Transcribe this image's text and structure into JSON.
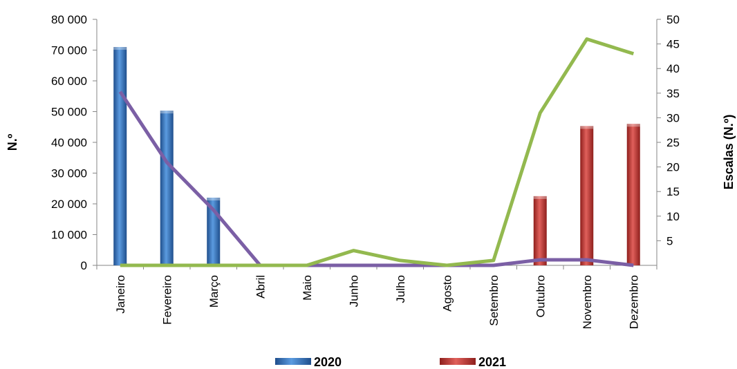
{
  "chart_data": {
    "type": "bar",
    "categories": [
      "Janeiro",
      "Fevereiro",
      "Março",
      "Abril",
      "Maio",
      "Junho",
      "Julho",
      "Agosto",
      "Setembro",
      "Outubro",
      "Novembro",
      "Dezembro"
    ],
    "bar_series": [
      {
        "name": "2020",
        "color": "#3a7fd0",
        "values": [
          71000,
          50300,
          22000,
          null,
          null,
          null,
          null,
          null,
          null,
          null,
          null,
          null
        ]
      },
      {
        "name": "2021",
        "color": "#cc3a36",
        "values": [
          null,
          null,
          null,
          null,
          null,
          null,
          null,
          null,
          null,
          22500,
          45300,
          46000
        ]
      }
    ],
    "line_series": [
      {
        "color": "#7b5fa5",
        "axis": "left",
        "values": [
          56500,
          33500,
          18000,
          0,
          0,
          0,
          0,
          0,
          0,
          1800,
          1800,
          0
        ]
      },
      {
        "color": "#93b94f",
        "axis": "right",
        "values": [
          0,
          0,
          0,
          0,
          0,
          3,
          1,
          0,
          1,
          31,
          46,
          43
        ]
      }
    ],
    "ylabel": "N.º",
    "y2label": "Escalas (N.º)",
    "ylim": [
      0,
      80000
    ],
    "y2lim": [
      0,
      50
    ],
    "yticks": [
      0,
      10000,
      20000,
      30000,
      40000,
      50000,
      60000,
      70000,
      80000
    ],
    "ytick_labels": [
      "0",
      "10 000",
      "20 000",
      "30 000",
      "40 000",
      "50 000",
      "60 000",
      "70 000",
      "80 000"
    ],
    "y2ticks": [
      5,
      10,
      15,
      20,
      25,
      30,
      35,
      40,
      45,
      50
    ],
    "y2tick_labels": [
      "5",
      "10",
      "15",
      "20",
      "25",
      "30",
      "35",
      "40",
      "45",
      "50"
    ],
    "legend": [
      "2020",
      "2021"
    ],
    "legend_position": "bottom",
    "grid": false
  }
}
